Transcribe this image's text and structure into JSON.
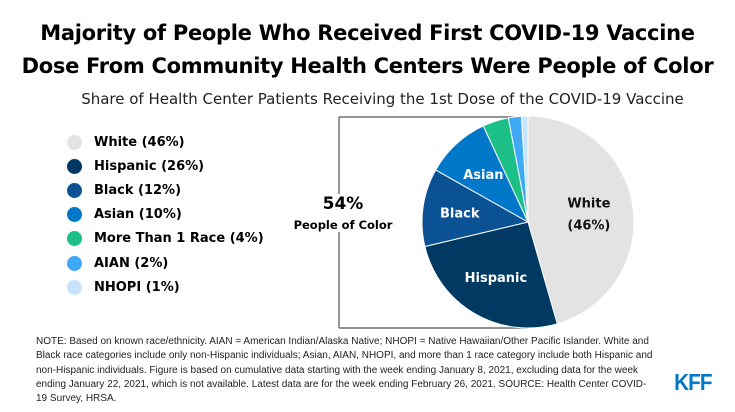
{
  "title_lines": [
    "Majority of People Who Received First COVID-19 Vaccine",
    "Dose From Community Health Centers Were People of Color"
  ],
  "subtitle": "Share of Health Center Patients Receiving the 1st Dose of the COVID-19 Vaccine",
  "chart_data": {
    "type": "pie",
    "title": "Share of Health Center Patients Receiving the 1st Dose of the COVID-19 Vaccine",
    "slices": [
      {
        "name": "White",
        "value": 46,
        "legend": "White (46%)",
        "label": "White",
        "label2": "(46%)",
        "color": "#e3e3e3",
        "label_color": "#111"
      },
      {
        "name": "Hispanic",
        "value": 26,
        "legend": "Hispanic (26%)",
        "label": "Hispanic",
        "color": "#003a63",
        "label_color": "#fff"
      },
      {
        "name": "Black",
        "value": 12,
        "legend": "Black (12%)",
        "label": "Black",
        "color": "#0b5294",
        "label_color": "#fff"
      },
      {
        "name": "Asian",
        "value": 10,
        "legend": "Asian (10%)",
        "label": "Asian",
        "color": "#0077c8",
        "label_color": "#fff"
      },
      {
        "name": "More Than 1 Race",
        "value": 4,
        "legend": "More Than 1 Race (4%)",
        "color": "#1cbf85"
      },
      {
        "name": "AIAN",
        "value": 2,
        "legend": "AIAN (2%)",
        "color": "#3fa9f5"
      },
      {
        "name": "NHOPI",
        "value": 1,
        "legend": "NHOPI (1%)",
        "color": "#c5e4fb"
      }
    ],
    "legend_position": "left",
    "annotation": {
      "value": "54%",
      "label": "People of Color"
    }
  },
  "note": "NOTE: Based on known race/ethnicity. AIAN = American Indian/Alaska Native; NHOPI = Native Hawaiian/Other Pacific Islander. White and Black race categories include only non-Hispanic individuals; Asian, AIAN, NHOPI, and more than 1 race category include both Hispanic and non-Hispanic individuals. Figure is based on cumulative data starting with the week ending January 8, 2021, excluding data for the week ending January 22, 2021, which is not available. Latest data are for the week ending February 26, 2021. SOURCE: Health Center COVID-19 Survey, HRSA.",
  "logo": "KFF"
}
